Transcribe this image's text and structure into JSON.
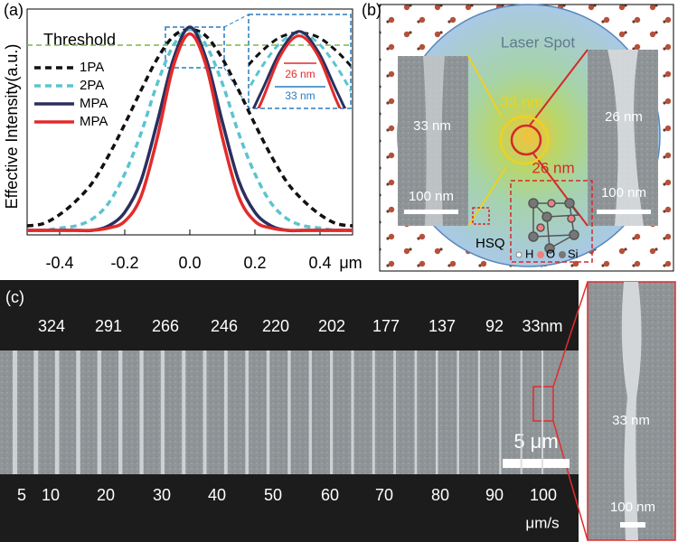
{
  "chart_data": {
    "type": "line",
    "panel_label": "(a)",
    "x_label": "μm",
    "y_label": "Effective Intensity(a.u.)",
    "x": [
      -0.5,
      -0.45,
      -0.4,
      -0.35,
      -0.3,
      -0.25,
      -0.2,
      -0.15,
      -0.1,
      -0.05,
      0,
      0.05,
      0.1,
      0.15,
      0.2,
      0.25,
      0.3,
      0.35,
      0.4,
      0.45,
      0.5
    ],
    "xlim": [
      -0.5,
      0.5
    ],
    "xticks": [
      -0.4,
      -0.2,
      {
        "value": 0,
        "label": "0.0"
      },
      0.2,
      0.4
    ],
    "ylim": [
      0,
      1
    ],
    "threshold": {
      "label": "Threshold",
      "value": 0.84,
      "color": "#7ab648"
    },
    "series": [
      {
        "name": "1PA",
        "color": "#111111",
        "dash": "dashed",
        "values": [
          0.04,
          0.05,
          0.09,
          0.15,
          0.23,
          0.35,
          0.49,
          0.64,
          0.78,
          0.88,
          0.91,
          0.88,
          0.78,
          0.64,
          0.49,
          0.35,
          0.23,
          0.15,
          0.09,
          0.05,
          0.04
        ]
      },
      {
        "name": "2PA",
        "color": "#5bc4d0",
        "dash": "dashed",
        "values": [
          0.02,
          0.02,
          0.03,
          0.04,
          0.07,
          0.14,
          0.27,
          0.45,
          0.67,
          0.84,
          0.91,
          0.84,
          0.67,
          0.45,
          0.27,
          0.14,
          0.07,
          0.04,
          0.03,
          0.02,
          0.02
        ]
      },
      {
        "name": "MPA",
        "color": "#2b2f5e",
        "dash": "solid",
        "values": [
          0.02,
          0.02,
          0.02,
          0.02,
          0.02,
          0.04,
          0.1,
          0.24,
          0.5,
          0.78,
          0.92,
          0.78,
          0.5,
          0.24,
          0.1,
          0.04,
          0.02,
          0.02,
          0.02,
          0.02,
          0.02
        ]
      },
      {
        "name": "MPA",
        "color": "#e32b2b",
        "dash": "solid",
        "values": [
          0.02,
          0.02,
          0.02,
          0.02,
          0.02,
          0.03,
          0.06,
          0.17,
          0.43,
          0.75,
          0.89,
          0.75,
          0.43,
          0.17,
          0.06,
          0.03,
          0.02,
          0.02,
          0.02,
          0.02,
          0.02
        ]
      }
    ],
    "inset": {
      "labels": [
        "26 nm",
        "33 nm"
      ]
    }
  },
  "panel_b": {
    "panel_label": "(b)",
    "spot_label": "Laser Spot",
    "left_image": {
      "width": "33 nm",
      "scale": "100 nm"
    },
    "right_image": {
      "width": "26 nm",
      "scale": "100 nm"
    },
    "outer_width": "33 nm",
    "inner_width": "26 nm",
    "material": "HSQ",
    "atoms": [
      "H",
      "O",
      "Si"
    ]
  },
  "panel_c": {
    "panel_label": "(c)",
    "widths": [
      "324",
      "291",
      "266",
      "246",
      "220",
      "202",
      "177",
      "137",
      "92",
      "33nm"
    ],
    "speeds": [
      "5",
      "10",
      "20",
      "30",
      "40",
      "50",
      "60",
      "70",
      "80",
      "90",
      "100"
    ],
    "speed_unit": "μm/s",
    "scale": "5 μm",
    "zoom": {
      "width": "33 nm",
      "scale": "100 nm"
    }
  }
}
